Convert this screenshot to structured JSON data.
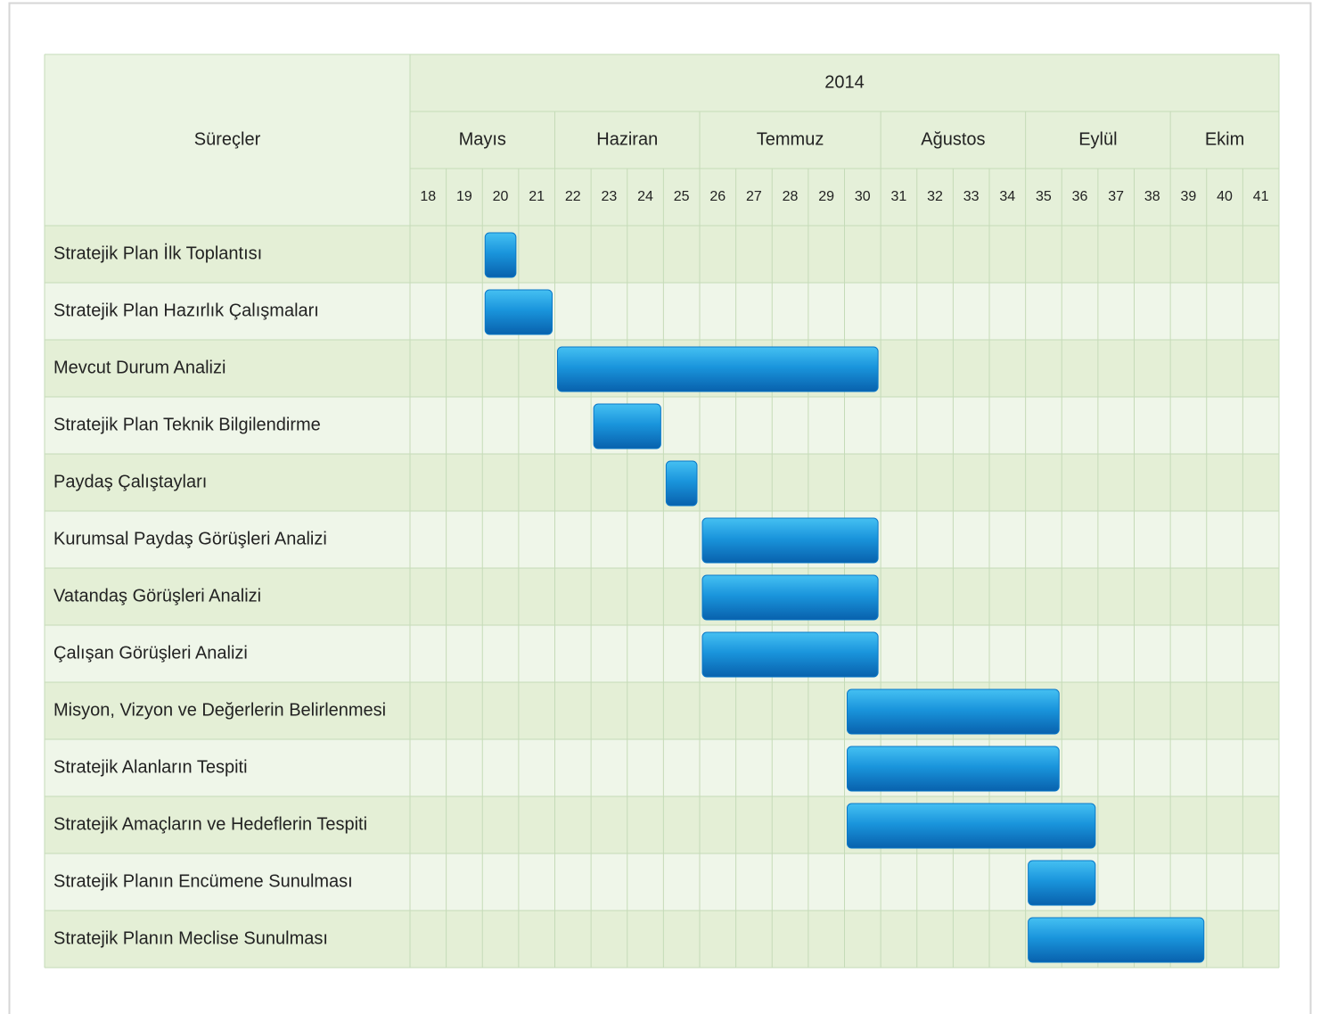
{
  "chart_data": {
    "type": "gantt",
    "label_header": "Süreçler",
    "year": "2014",
    "months": [
      {
        "name": "Mayıs",
        "weeks": [
          18,
          21
        ]
      },
      {
        "name": "Haziran",
        "weeks": [
          22,
          25
        ]
      },
      {
        "name": "Temmuz",
        "weeks": [
          26,
          30
        ]
      },
      {
        "name": "Ağustos",
        "weeks": [
          31,
          34
        ]
      },
      {
        "name": "Eylül",
        "weeks": [
          35,
          38
        ]
      },
      {
        "name": "Ekim",
        "weeks": [
          39,
          41
        ]
      }
    ],
    "xlim": [
      18,
      41
    ],
    "xticks": [
      18,
      19,
      20,
      21,
      22,
      23,
      24,
      25,
      26,
      27,
      28,
      29,
      30,
      31,
      32,
      33,
      34,
      35,
      36,
      37,
      38,
      39,
      40,
      41
    ],
    "color": "#0a78c8",
    "tasks": [
      {
        "name": "Stratejik Plan İlk Toplantısı",
        "start": 20,
        "end": 20
      },
      {
        "name": "Stratejik Plan Hazırlık Çalışmaları",
        "start": 20,
        "end": 21
      },
      {
        "name": "Mevcut Durum Analizi",
        "start": 22,
        "end": 30
      },
      {
        "name": "Stratejik Plan Teknik Bilgilendirme",
        "start": 23,
        "end": 24
      },
      {
        "name": "Paydaş Çalıştayları",
        "start": 25,
        "end": 25
      },
      {
        "name": "Kurumsal Paydaş Görüşleri Analizi",
        "start": 26,
        "end": 30
      },
      {
        "name": "Vatandaş Görüşleri Analizi",
        "start": 26,
        "end": 30
      },
      {
        "name": "Çalışan Görüşleri Analizi",
        "start": 26,
        "end": 30
      },
      {
        "name": "Misyon, Vizyon ve Değerlerin Belirlenmesi",
        "start": 30,
        "end": 35
      },
      {
        "name": "Stratejik Alanların Tespiti",
        "start": 30,
        "end": 35
      },
      {
        "name": "Stratejik Amaçların ve Hedeflerin Tespiti",
        "start": 30,
        "end": 36
      },
      {
        "name": "Stratejik Planın Encümene Sunulması",
        "start": 35,
        "end": 36
      },
      {
        "name": "Stratejik Planın Meclise Sunulması",
        "start": 35,
        "end": 39
      }
    ]
  }
}
